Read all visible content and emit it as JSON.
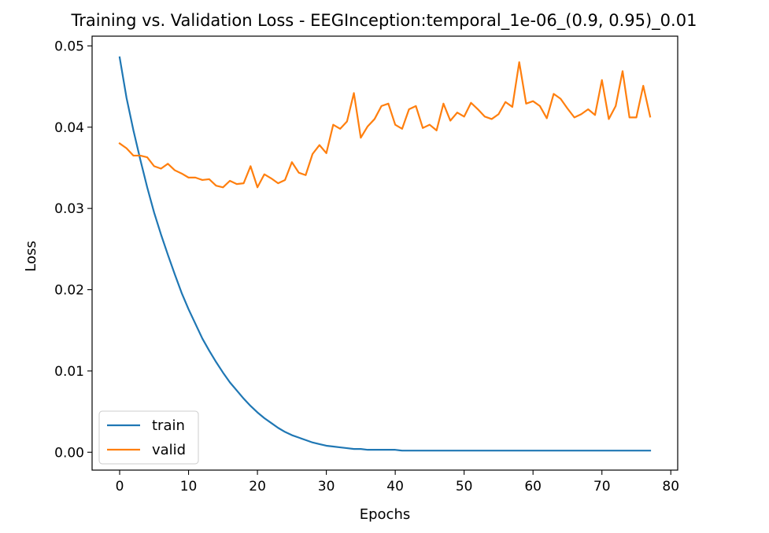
{
  "chart_data": {
    "type": "line",
    "title": "Training vs. Validation Loss - EEGInception:temporal_1e-06_(0.9, 0.95)_0.01",
    "xlabel": "Epochs",
    "ylabel": "Loss",
    "xlim": [
      -4,
      81
    ],
    "ylim": [
      -0.0022,
      0.0512
    ],
    "xticks": [
      0,
      10,
      20,
      30,
      40,
      50,
      60,
      70,
      80
    ],
    "xtick_labels": [
      "0",
      "10",
      "20",
      "30",
      "40",
      "50",
      "60",
      "70",
      "80"
    ],
    "yticks": [
      0.0,
      0.01,
      0.02,
      0.03,
      0.04,
      0.05
    ],
    "ytick_labels": [
      "0.00",
      "0.01",
      "0.02",
      "0.03",
      "0.04",
      "0.05"
    ],
    "grid": false,
    "legend_position": "lower-left",
    "series": [
      {
        "name": "train",
        "color": "#1f77b4",
        "x": [
          0,
          1,
          2,
          3,
          4,
          5,
          6,
          7,
          8,
          9,
          10,
          11,
          12,
          13,
          14,
          15,
          16,
          17,
          18,
          19,
          20,
          21,
          22,
          23,
          24,
          25,
          26,
          27,
          28,
          29,
          30,
          31,
          32,
          33,
          34,
          35,
          36,
          37,
          38,
          39,
          40,
          41,
          42,
          43,
          44,
          45,
          46,
          47,
          48,
          49,
          50,
          51,
          52,
          53,
          54,
          55,
          56,
          57,
          58,
          59,
          60,
          61,
          62,
          63,
          64,
          65,
          66,
          67,
          68,
          69,
          70,
          71,
          72,
          73,
          74,
          75,
          76,
          77
        ],
        "values": [
          0.0486,
          0.0436,
          0.0396,
          0.036,
          0.0326,
          0.0295,
          0.0268,
          0.0243,
          0.0219,
          0.0196,
          0.0176,
          0.0158,
          0.014,
          0.0125,
          0.0111,
          0.0098,
          0.0086,
          0.0076,
          0.0066,
          0.0057,
          0.0049,
          0.0042,
          0.0036,
          0.003,
          0.0025,
          0.0021,
          0.0018,
          0.0015,
          0.0012,
          0.001,
          0.0008,
          0.0007,
          0.0006,
          0.0005,
          0.0004,
          0.0004,
          0.0003,
          0.0003,
          0.0003,
          0.0003,
          0.0003,
          0.0002,
          0.0002,
          0.0002,
          0.0002,
          0.0002,
          0.0002,
          0.0002,
          0.0002,
          0.0002,
          0.0002,
          0.0002,
          0.0002,
          0.0002,
          0.0002,
          0.0002,
          0.0002,
          0.0002,
          0.0002,
          0.0002,
          0.0002,
          0.0002,
          0.0002,
          0.0002,
          0.0002,
          0.0002,
          0.0002,
          0.0002,
          0.0002,
          0.0002,
          0.0002,
          0.0002,
          0.0002,
          0.0002,
          0.0002,
          0.0002,
          0.0002,
          0.0002
        ]
      },
      {
        "name": "valid",
        "color": "#ff7f0e",
        "x": [
          0,
          1,
          2,
          3,
          4,
          5,
          6,
          7,
          8,
          9,
          10,
          11,
          12,
          13,
          14,
          15,
          16,
          17,
          18,
          19,
          20,
          21,
          22,
          23,
          24,
          25,
          26,
          27,
          28,
          29,
          30,
          31,
          32,
          33,
          34,
          35,
          36,
          37,
          38,
          39,
          40,
          41,
          42,
          43,
          44,
          45,
          46,
          47,
          48,
          49,
          50,
          51,
          52,
          53,
          54,
          55,
          56,
          57,
          58,
          59,
          60,
          61,
          62,
          63,
          64,
          65,
          66,
          67,
          68,
          69,
          70,
          71,
          72,
          73,
          74,
          75,
          76,
          77
        ],
        "values": [
          0.038,
          0.0374,
          0.0365,
          0.0365,
          0.0363,
          0.0352,
          0.0349,
          0.0355,
          0.0347,
          0.0343,
          0.0338,
          0.0338,
          0.0335,
          0.0336,
          0.0328,
          0.0326,
          0.0334,
          0.033,
          0.0331,
          0.0352,
          0.0326,
          0.0342,
          0.0337,
          0.0331,
          0.0335,
          0.0357,
          0.0344,
          0.0341,
          0.0367,
          0.0378,
          0.0368,
          0.0403,
          0.0398,
          0.0407,
          0.0442,
          0.0387,
          0.0401,
          0.041,
          0.0426,
          0.0429,
          0.0403,
          0.0398,
          0.0422,
          0.0426,
          0.0399,
          0.0403,
          0.0396,
          0.0429,
          0.0408,
          0.0418,
          0.0413,
          0.043,
          0.0422,
          0.0413,
          0.041,
          0.0416,
          0.0431,
          0.0425,
          0.048,
          0.0429,
          0.0432,
          0.0426,
          0.0411,
          0.0441,
          0.0435,
          0.0423,
          0.0412,
          0.0416,
          0.0422,
          0.0415,
          0.0458,
          0.041,
          0.0426,
          0.0469,
          0.0412,
          0.0412,
          0.0451,
          0.0413
        ]
      }
    ]
  }
}
